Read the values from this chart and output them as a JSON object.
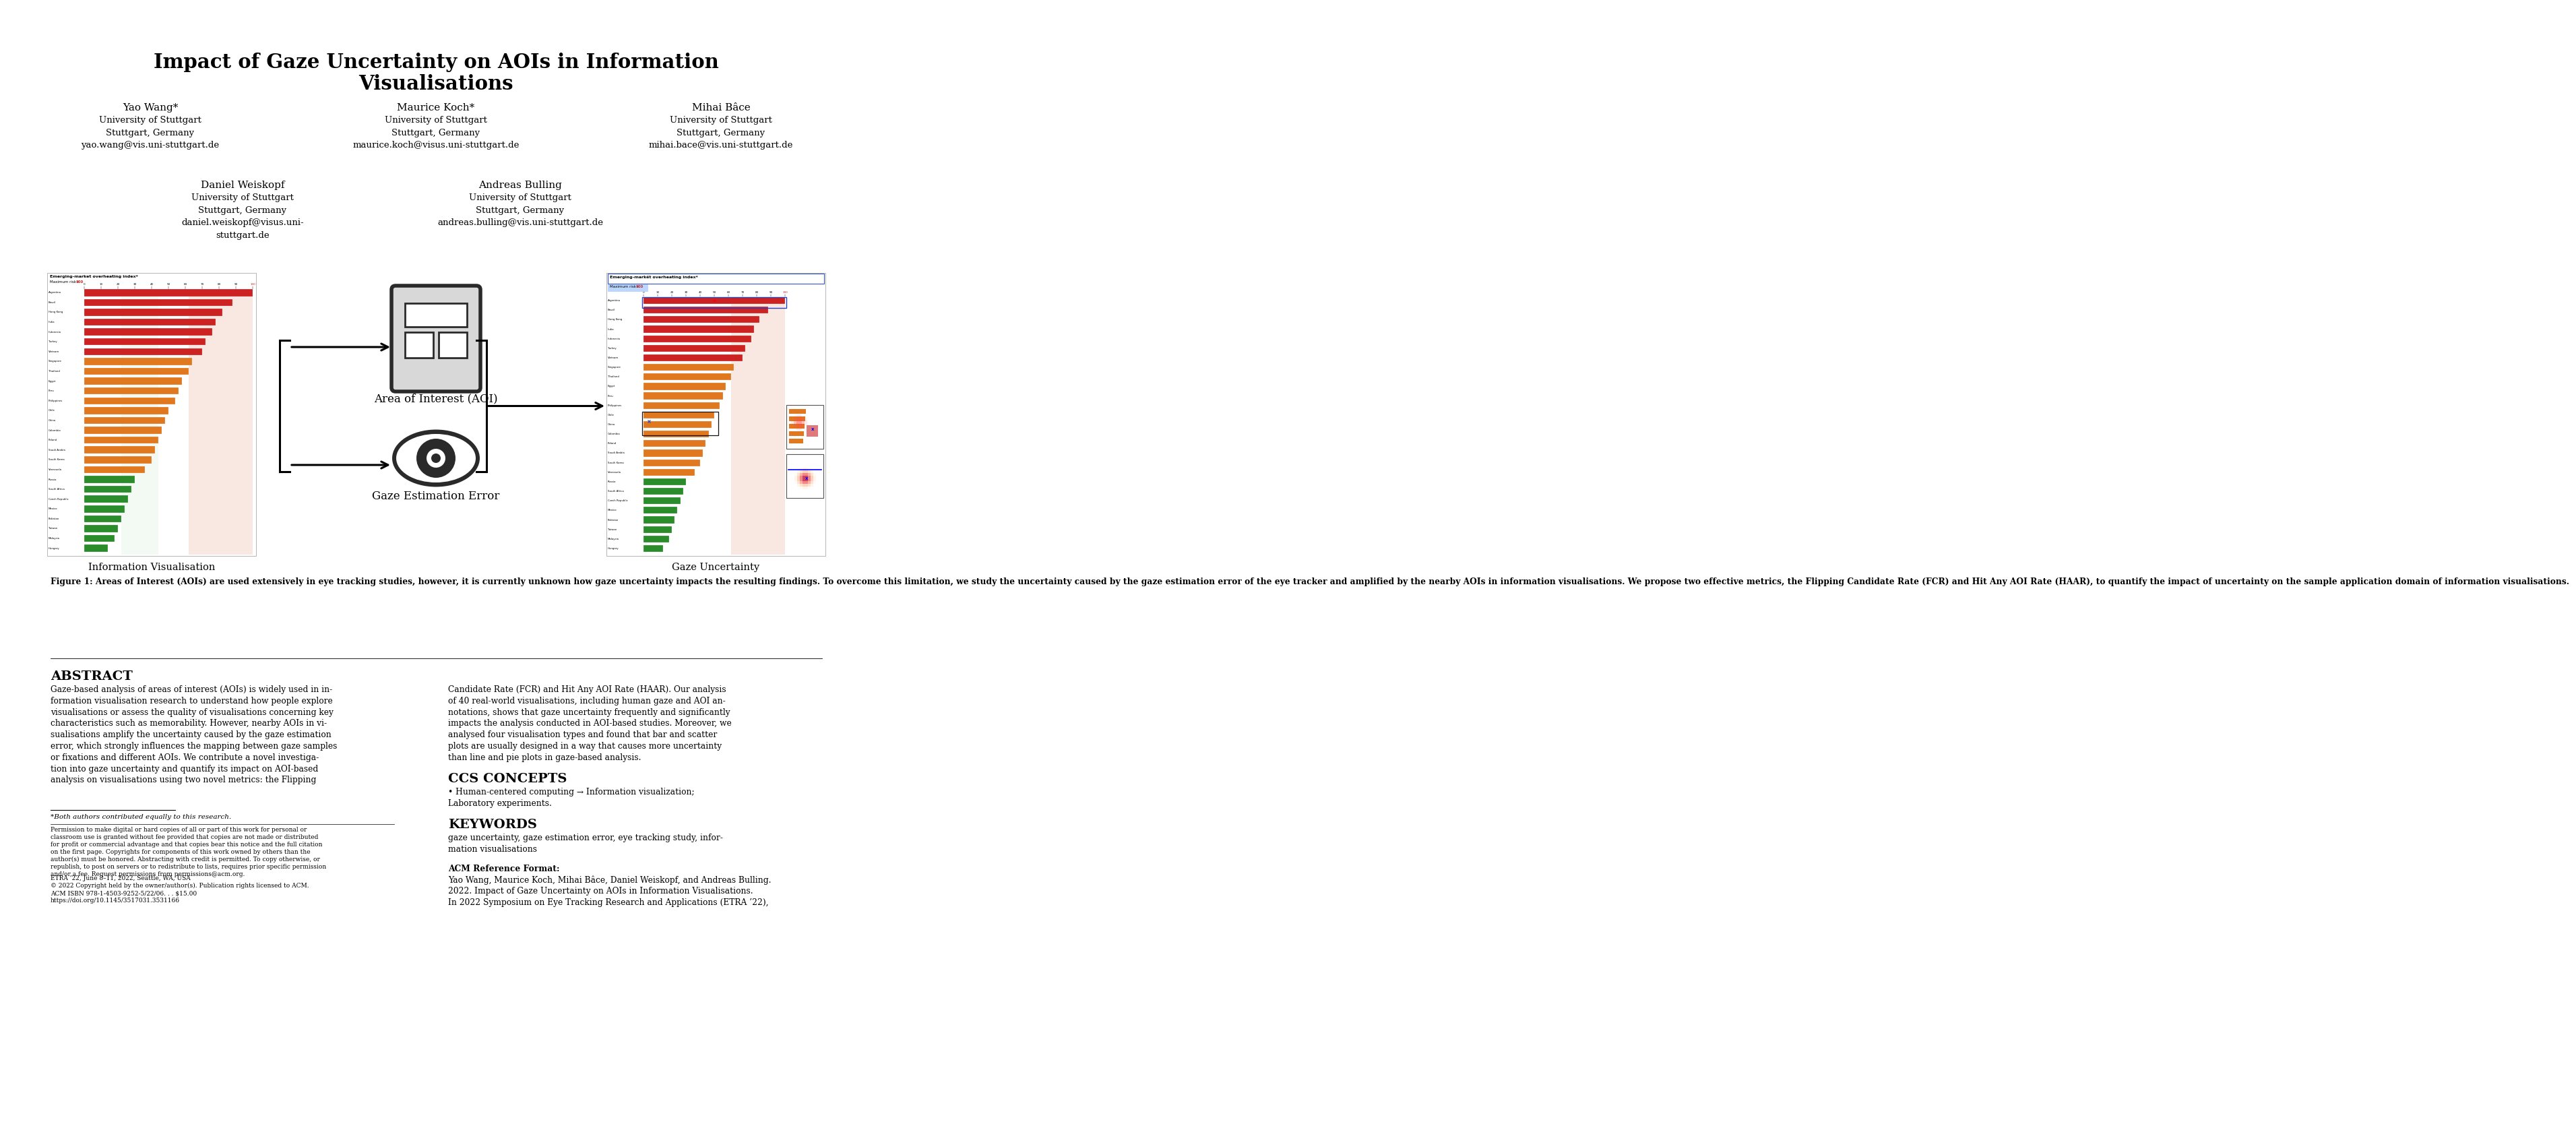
{
  "title_line1": "Impact of Gaze Uncertainty on AOIs in Information",
  "title_line2": "Visualisations",
  "author1_name": "Yao Wang*",
  "author1_affil": "University of Stuttgart\nStuttgart, Germany\nyao.wang@vis.uni-stuttgart.de",
  "author2_name": "Maurice Koch*",
  "author2_affil": "University of Stuttgart\nStuttgart, Germany\nmaurice.koch@visus.uni-stuttgart.de",
  "author3_name": "Mihai Bâce",
  "author3_affil": "University of Stuttgart\nStuttgart, Germany\nmihai.bace@vis.uni-stuttgart.de",
  "author4_name": "Daniel Weiskopf",
  "author4_affil": "University of Stuttgart\nStuttgart, Germany\ndaniel.weiskopf@visus.uni-\nstuttgart.de",
  "author5_name": "Andreas Bulling",
  "author5_affil": "University of Stuttgart\nStuttgart, Germany\nandreas.bulling@vis.uni-stuttgart.de",
  "fig_aoi_label": "Area of Interest (AOI)",
  "fig_gaze_label": "Gaze Estimation Error",
  "fig_label_left": "Information Visualisation",
  "fig_label_right": "Gaze Uncertainty",
  "figure_caption_bold": "Figure 1: Areas of Interest (AOIs) are used extensively in eye tracking studies, however, it is currently unknown how gaze uncertainty impacts the resulting findings. To overcome this limitation, we study the uncertainty caused by the gaze estimation error of the eye tracker and amplified by the nearby AOIs in information visualisations. We propose two effective metrics, the Flipping Candidate Rate (FCR) and Hit Any AOI Rate (HAAR), to quantify the impact of uncertainty on the sample application domain of information visualisations.",
  "abstract_title": "ABSTRACT",
  "abstract_left": "Gaze-based analysis of areas of interest (AOIs) is widely used in in-\nformation visualisation research to understand how people explore\nvisualisations or assess the quality of visualisations concerning key\ncharacteristics such as memorability. However, nearby AOIs in vi-\nsualisations amplify the uncertainty caused by the gaze estimation\nerror, which strongly influences the mapping between gaze samples\nor fixations and different AOIs. We contribute a novel investiga-\ntion into gaze uncertainty and quantify its impact on AOI-based\nanalysis on visualisations using two novel metrics: the Flipping",
  "abstract_right": "Candidate Rate (FCR) and Hit Any AOI Rate (HAAR). Our analysis\nof 40 real-world visualisations, including human gaze and AOI an-\nnotations, shows that gaze uncertainty frequently and significantly\nimpacts the analysis conducted in AOI-based studies. Moreover, we\nanalysed four visualisation types and found that bar and scatter\nplots are usually designed in a way that causes more uncertainty\nthan line and pie plots in gaze-based analysis.",
  "ccs_title": "CCS CONCEPTS",
  "ccs_text": "• Human-centered computing → Information visualization;\nLaboratory experiments.",
  "kw_title": "KEYWORDS",
  "kw_text": "gaze uncertainty, gaze estimation error, eye tracking study, infor-\nmation visualisations",
  "acm_title": "ACM Reference Format:",
  "acm_text": "Yao Wang, Maurice Koch, Mihai Bâce, Daniel Weiskopf, and Andreas Bulling.\n2022. Impact of Gaze Uncertainty on AOIs in Information Visualisations.\nIn 2022 Symposium on Eye Tracking Research and Applications (ETRA ’22),",
  "footnote1": "*Both authors contributed equally to this research.",
  "footnote2": "Permission to make digital or hard copies of all or part of this work for personal or\nclassroom use is granted without fee provided that copies are not made or distributed\nfor profit or commercial advantage and that copies bear this notice and the full citation\non the first page. Copyrights for components of this work owned by others than the\nauthor(s) must be honored. Abstracting with credit is permitted. To copy otherwise, or\nrepublish, to post on servers or to redistribute to lists, requires prior specific permission\nand/or a fee. Request permissions from permissions@acm.org.",
  "footnote3": "ETRA ’22, June 8–11, 2022, Seattle, WA, USA\n© 2022 Copyright held by the owner/author(s). Publication rights licensed to ACM.\nACM ISBN 978-1-4503-9252-5/22/06. . . $15.00\nhttps://doi.org/10.1145/3517031.3531166",
  "countries": [
    "Argentina",
    "Brazil",
    "Hong Kong",
    "India",
    "Indonesia",
    "Turkey",
    "Vietnam",
    "Singapore",
    "Thailand",
    "Egypt",
    "Peru",
    "Philippines",
    "Chile",
    "China",
    "Colombia",
    "Poland",
    "Saudi Arabia",
    "South Korea",
    "Venezuela",
    "Russia",
    "South Africa",
    "Czech Republic",
    "Mexico",
    "Pakistan",
    "Taiwan",
    "Malaysia",
    "Hungary"
  ],
  "values": [
    100,
    88,
    82,
    78,
    76,
    72,
    70,
    64,
    62,
    58,
    56,
    54,
    50,
    48,
    46,
    44,
    42,
    40,
    36,
    30,
    28,
    26,
    24,
    22,
    20,
    18,
    14
  ],
  "bar_colors": [
    "#cc2222",
    "#cc2222",
    "#cc2222",
    "#cc2222",
    "#cc2222",
    "#cc2222",
    "#cc2222",
    "#e07820",
    "#e07820",
    "#e07820",
    "#e07820",
    "#e07820",
    "#e07820",
    "#e07820",
    "#e07820",
    "#e07820",
    "#e07820",
    "#e07820",
    "#e07820",
    "#2a8c2a",
    "#2a8c2a",
    "#2a8c2a",
    "#2a8c2a",
    "#2a8c2a",
    "#2a8c2a",
    "#2a8c2a",
    "#2a8c2a"
  ],
  "bg_color": "#ffffff"
}
